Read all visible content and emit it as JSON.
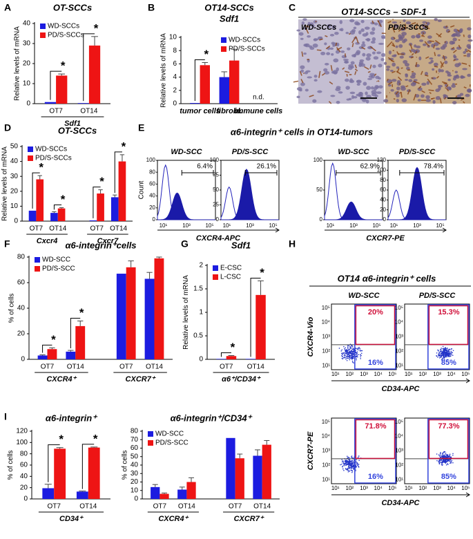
{
  "panel_letters": [
    "A",
    "B",
    "C",
    "D",
    "E",
    "F",
    "G",
    "H",
    "I"
  ],
  "chart_data": [
    {
      "type": "bar",
      "title": "OT-SCCs",
      "y_label": "Relative levels of mRNA",
      "categories": [
        "OT7",
        "OT14"
      ],
      "group_labels": [
        "Sdf1"
      ],
      "series": [
        {
          "name": "WD-SCCs",
          "color": "#1c1ce0",
          "values": [
            0.8,
            0.3
          ],
          "errors": [
            null,
            null
          ]
        },
        {
          "name": "PD/S-SCCs",
          "color": "#ee1414",
          "values": [
            14,
            29
          ],
          "errors": [
            0.8,
            4.5
          ]
        }
      ],
      "significance": [
        "*",
        "*"
      ],
      "ylim": [
        0,
        40
      ],
      "yticks": [
        0,
        10,
        20,
        30,
        40
      ],
      "legend": "upper-left"
    },
    {
      "type": "bar",
      "title": "OT14-SCCs",
      "subtitle": "Sdf1",
      "y_label": "Relative levels of mRNA",
      "categories": [
        "tumor cells",
        "fibrobl.",
        "immune cells"
      ],
      "series": [
        {
          "name": "WD-SCCs",
          "color": "#1c1ce0",
          "values": [
            0.1,
            4,
            null
          ],
          "errors": [
            null,
            0.8,
            null
          ]
        },
        {
          "name": "PD/S-SCCs",
          "color": "#ee1414",
          "values": [
            5.8,
            6.5,
            null
          ],
          "errors": [
            0.4,
            1.7,
            null
          ]
        }
      ],
      "significance": [
        "*",
        null,
        null
      ],
      "category_notes": [
        null,
        null,
        "n.d."
      ],
      "ylim": [
        0,
        10
      ],
      "yticks": [
        0,
        2,
        4,
        6,
        8,
        10
      ],
      "legend": "upper-right"
    },
    {
      "type": "bar",
      "title": "OT-SCCs",
      "y_label": "Relative levels of mRNA",
      "categories": [
        "OT7",
        "OT14",
        "OT7",
        "OT14"
      ],
      "group_labels": [
        "Cxcr4",
        "Cxcr7"
      ],
      "series": [
        {
          "name": "WD-SCCs",
          "color": "#1c1ce0",
          "values": [
            7,
            5.5,
            0.5,
            16
          ],
          "errors": [
            null,
            0.8,
            null,
            1.5
          ]
        },
        {
          "name": "PD/S-SCCs",
          "color": "#ee1414",
          "values": [
            28,
            8.5,
            18.5,
            40
          ],
          "errors": [
            2.5,
            0.5,
            2.5,
            4.5
          ]
        }
      ],
      "significance": [
        "*",
        "*",
        "*",
        "*"
      ],
      "ylim": [
        0,
        50
      ],
      "yticks": [
        0,
        10,
        20,
        30,
        40,
        50
      ],
      "legend": "upper-left"
    },
    {
      "type": "bar",
      "title": "α6-integrin⁺cells",
      "y_label": "% of cells",
      "categories": [
        "OT7",
        "OT14",
        "OT7",
        "OT14"
      ],
      "group_labels": [
        "CXCR4⁺",
        "CXCR7⁺"
      ],
      "series": [
        {
          "name": "WD-SCC",
          "color": "#1c1ce0",
          "values": [
            3,
            6,
            67,
            63
          ],
          "errors": [
            0.5,
            1,
            null,
            5
          ]
        },
        {
          "name": "PD/S-SCC",
          "color": "#ee1414",
          "values": [
            8,
            26,
            72,
            79
          ],
          "errors": [
            1,
            4,
            5,
            1
          ]
        }
      ],
      "significance": [
        "*",
        "*",
        null,
        null
      ],
      "ylim": [
        0,
        80
      ],
      "yticks": [
        0,
        20,
        40,
        60,
        80
      ],
      "legend": "upper-left"
    },
    {
      "type": "bar",
      "title": "Sdf1",
      "y_label": "Relative levels of mRNA",
      "categories": [
        "OT7",
        "OT14"
      ],
      "group_labels": [
        "α6⁺/CD34⁺"
      ],
      "series": [
        {
          "name": "E-CSC",
          "color": "#1c1ce0",
          "values": [
            0.01,
            0.01
          ],
          "errors": [
            null,
            null
          ]
        },
        {
          "name": "L-CSC",
          "color": "#ee1414",
          "values": [
            0.07,
            1.37
          ],
          "errors": [
            0.01,
            0.3
          ]
        }
      ],
      "significance": [
        "*",
        "*"
      ],
      "ylim": [
        0,
        2
      ],
      "yticks": [
        0,
        0.5,
        1,
        1.5,
        2
      ],
      "legend": "upper-left"
    },
    {
      "type": "bar",
      "title": "α6-integrin⁺",
      "y_label": "% of cells",
      "categories": [
        "OT7",
        "OT14"
      ],
      "group_labels": [
        "CD34⁺"
      ],
      "series": [
        {
          "color": "#1c1ce0",
          "values": [
            19,
            13
          ],
          "errors": [
            7,
            1
          ]
        },
        {
          "color": "#ee1414",
          "values": [
            89,
            91
          ],
          "errors": [
            2,
            1
          ]
        }
      ],
      "significance": [
        "*",
        "*"
      ],
      "ylim": [
        0,
        120
      ],
      "yticks": [
        0,
        20,
        40,
        60,
        80,
        100,
        120
      ]
    },
    {
      "type": "bar",
      "title": "α6-integrin⁺/CD34⁺",
      "y_label": "% of cells",
      "categories": [
        "OT7",
        "OT14",
        "OT7",
        "OT14"
      ],
      "group_labels": [
        "CXCR4⁺",
        "CXCR7⁺"
      ],
      "series": [
        {
          "name": "WD-SCC",
          "color": "#1c1ce0",
          "values": [
            14,
            11,
            72,
            51
          ],
          "errors": [
            3,
            3,
            null,
            7
          ]
        },
        {
          "name": "PD/S-SCC",
          "color": "#ee1414",
          "values": [
            6,
            20,
            48,
            64
          ],
          "errors": [
            1,
            5,
            5,
            5
          ]
        }
      ],
      "ylim": [
        0,
        80
      ],
      "yticks": [
        0,
        10,
        20,
        30,
        40,
        50,
        60,
        70,
        80
      ],
      "legend": "upper-left"
    }
  ],
  "histology": {
    "title": "OT14-SCCs – SDF-1",
    "labels": [
      "WD-SCCs",
      "PD/S-SCCs"
    ]
  },
  "flow_histograms": {
    "title": "α6-integrin⁺ cells in OT14-tumors",
    "y_label": "Count",
    "x_labels": [
      "CXCR4-APC",
      "CXCR7-PE"
    ],
    "xticks": [
      "10¹",
      "10³",
      "10⁵"
    ],
    "panels": [
      {
        "label": "WD-SCC",
        "gate": "6.4%",
        "ylim": [
          0,
          100
        ],
        "yticks": [
          0,
          20,
          40,
          60,
          80,
          100
        ]
      },
      {
        "label": "PD/S-SCC",
        "gate": "26.1%",
        "ylim": [
          0,
          100
        ],
        "yticks": [
          0,
          25,
          50,
          75,
          100
        ]
      },
      {
        "label": "WD-SCC",
        "gate": "62.9%",
        "ylim": [
          0,
          100
        ],
        "yticks": [
          0,
          50,
          100
        ]
      },
      {
        "label": "PD/S-SCC",
        "gate": "78.4%",
        "ylim": [
          0,
          120
        ],
        "yticks": [
          0,
          20,
          40,
          60,
          80,
          100,
          120
        ]
      }
    ]
  },
  "dot_plots": {
    "title": "OT14 α6-integrin⁺ cells",
    "columns": [
      "WD-SCC",
      "PD/S-SCC"
    ],
    "x_label": "CD34-APC",
    "ticks": [
      "10¹",
      "10²",
      "10³",
      "10⁴",
      "10⁵"
    ],
    "rows": [
      {
        "y_label": "CXCR4-Vio",
        "gates": [
          [
            "20%",
            "16%"
          ],
          [
            "15.3%",
            "85%"
          ]
        ]
      },
      {
        "y_label": "CXCR7-PE",
        "gates": [
          [
            "71.8%",
            "16%"
          ],
          [
            "77.3%",
            "85%"
          ]
        ]
      }
    ]
  }
}
